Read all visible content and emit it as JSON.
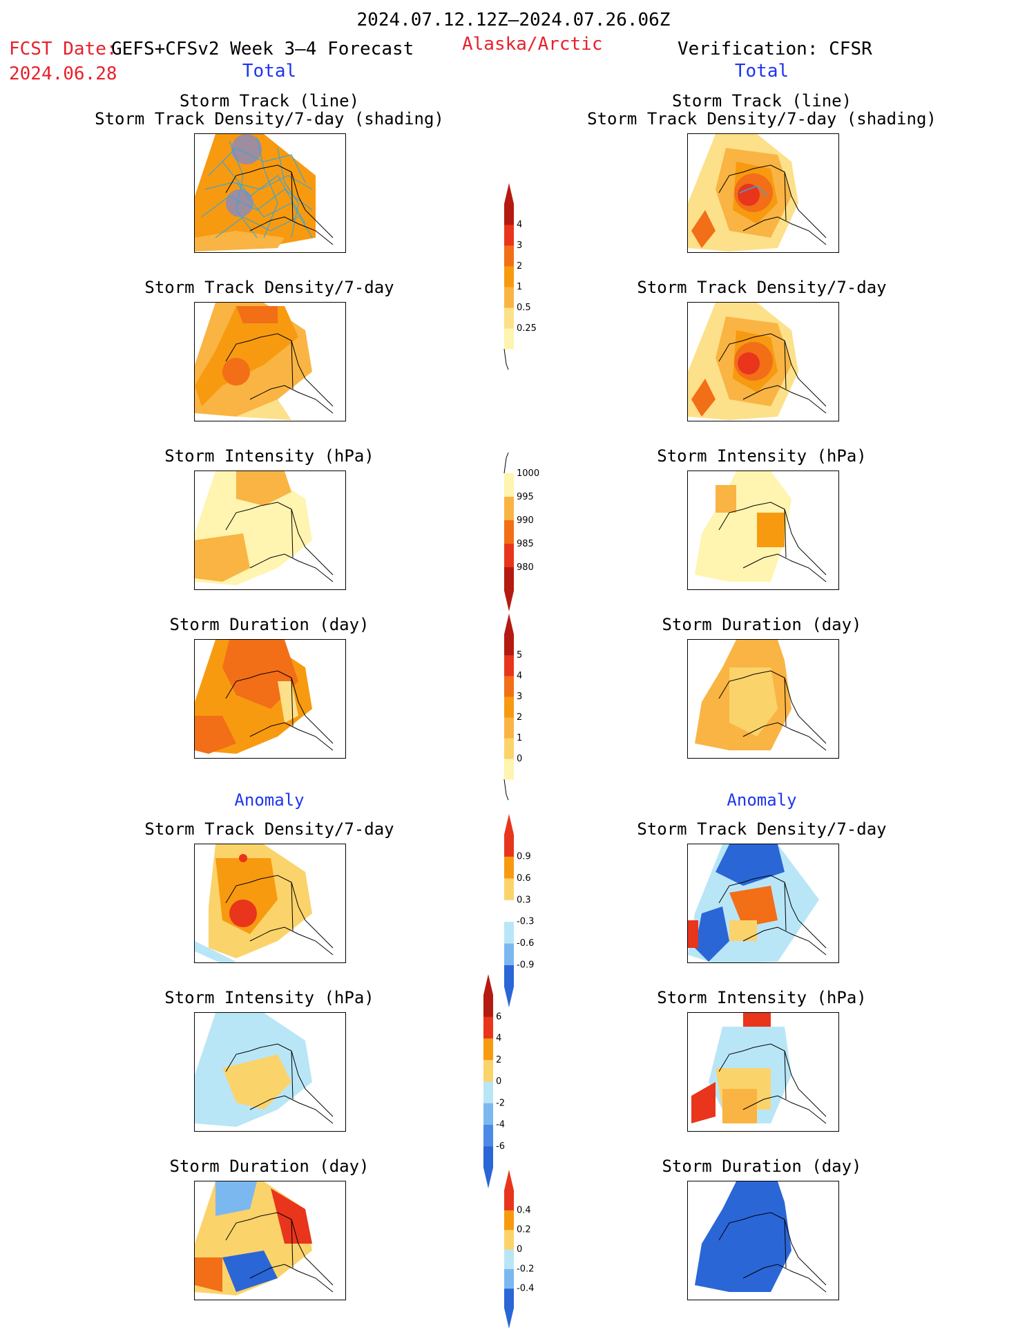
{
  "header": {
    "date_range": "2024.07.12.12Z–2024.07.26.06Z",
    "fcst_date_label": "FCST Date:",
    "forecast_name": "GEFS+CFSv2 Week 3–4 Forecast",
    "fcst_date": "2024.06.28",
    "region": "Alaska/Arctic",
    "verification": "Verification: CFSR"
  },
  "columns": {
    "left_total_label": "Total",
    "right_total_label": "Total",
    "left_anomaly_label": "Anomaly",
    "right_anomaly_label": "Anomaly"
  },
  "panel_titles": {
    "track_line": "Storm Track (line)",
    "track_shading": "Storm Track Density/7-day (shading)",
    "density": "Storm Track Density/7-day",
    "intensity": "Storm Intensity (hPa)",
    "duration": "Storm Duration (day)"
  },
  "colors": {
    "title_red": "#e8202a",
    "label_blue": "#1d35f0",
    "c_lightyellow": "#fff4b0",
    "c_yellow": "#fbd36b",
    "c_lightorange": "#f9b443",
    "c_orange": "#f79a10",
    "c_darkorange": "#f26e17",
    "c_red": "#e8351c",
    "c_darkred": "#b51a12",
    "c_lightblue": "#b9e6f7",
    "c_blue": "#7cb8f0",
    "c_deepblue": "#2a66d6",
    "track_line": "#3aa6d8"
  },
  "chart_data": [
    {
      "type": "colorbar",
      "name": "density_total",
      "ticks": [
        "0.25",
        "0.5",
        "1",
        "2",
        "3",
        "4"
      ],
      "colors": [
        "#fff4b0",
        "#fde08a",
        "#f9b443",
        "#f79a10",
        "#f26e17",
        "#e8351c",
        "#b51a12"
      ]
    },
    {
      "type": "colorbar",
      "name": "intensity_total",
      "ticks": [
        "1000",
        "995",
        "990",
        "985",
        "980"
      ],
      "colors": [
        "#fff4b0",
        "#f9b443",
        "#f26e17",
        "#e8351c",
        "#b51a12"
      ]
    },
    {
      "type": "colorbar",
      "name": "duration_total",
      "ticks": [
        "0",
        "1",
        "2",
        "3",
        "4",
        "5"
      ],
      "colors": [
        "#fff4b0",
        "#fbd36b",
        "#f9b443",
        "#f79a10",
        "#f26e17",
        "#e8351c",
        "#b51a12"
      ]
    },
    {
      "type": "colorbar",
      "name": "density_anomaly",
      "ticks": [
        "-0.9",
        "-0.6",
        "-0.3",
        "0.3",
        "0.6",
        "0.9"
      ],
      "colors": [
        "#2a66d6",
        "#7cb8f0",
        "#b9e6f7",
        "#ffffff",
        "#fbd36b",
        "#f79a10",
        "#e8351c"
      ]
    },
    {
      "type": "colorbar",
      "name": "intensity_anomaly",
      "ticks": [
        "-6",
        "-4",
        "-2",
        "0",
        "2",
        "4",
        "6"
      ],
      "colors": [
        "#2a66d6",
        "#4c8ae6",
        "#7cb8f0",
        "#b9e6f7",
        "#fbd36b",
        "#f79a10",
        "#e8351c",
        "#b51a12"
      ]
    },
    {
      "type": "colorbar",
      "name": "duration_anomaly",
      "ticks": [
        "-0.4",
        "-0.2",
        "0",
        "0.2",
        "0.4"
      ],
      "colors": [
        "#2a66d6",
        "#7cb8f0",
        "#b9e6f7",
        "#fbd36b",
        "#f79a10",
        "#e8351c"
      ]
    }
  ]
}
